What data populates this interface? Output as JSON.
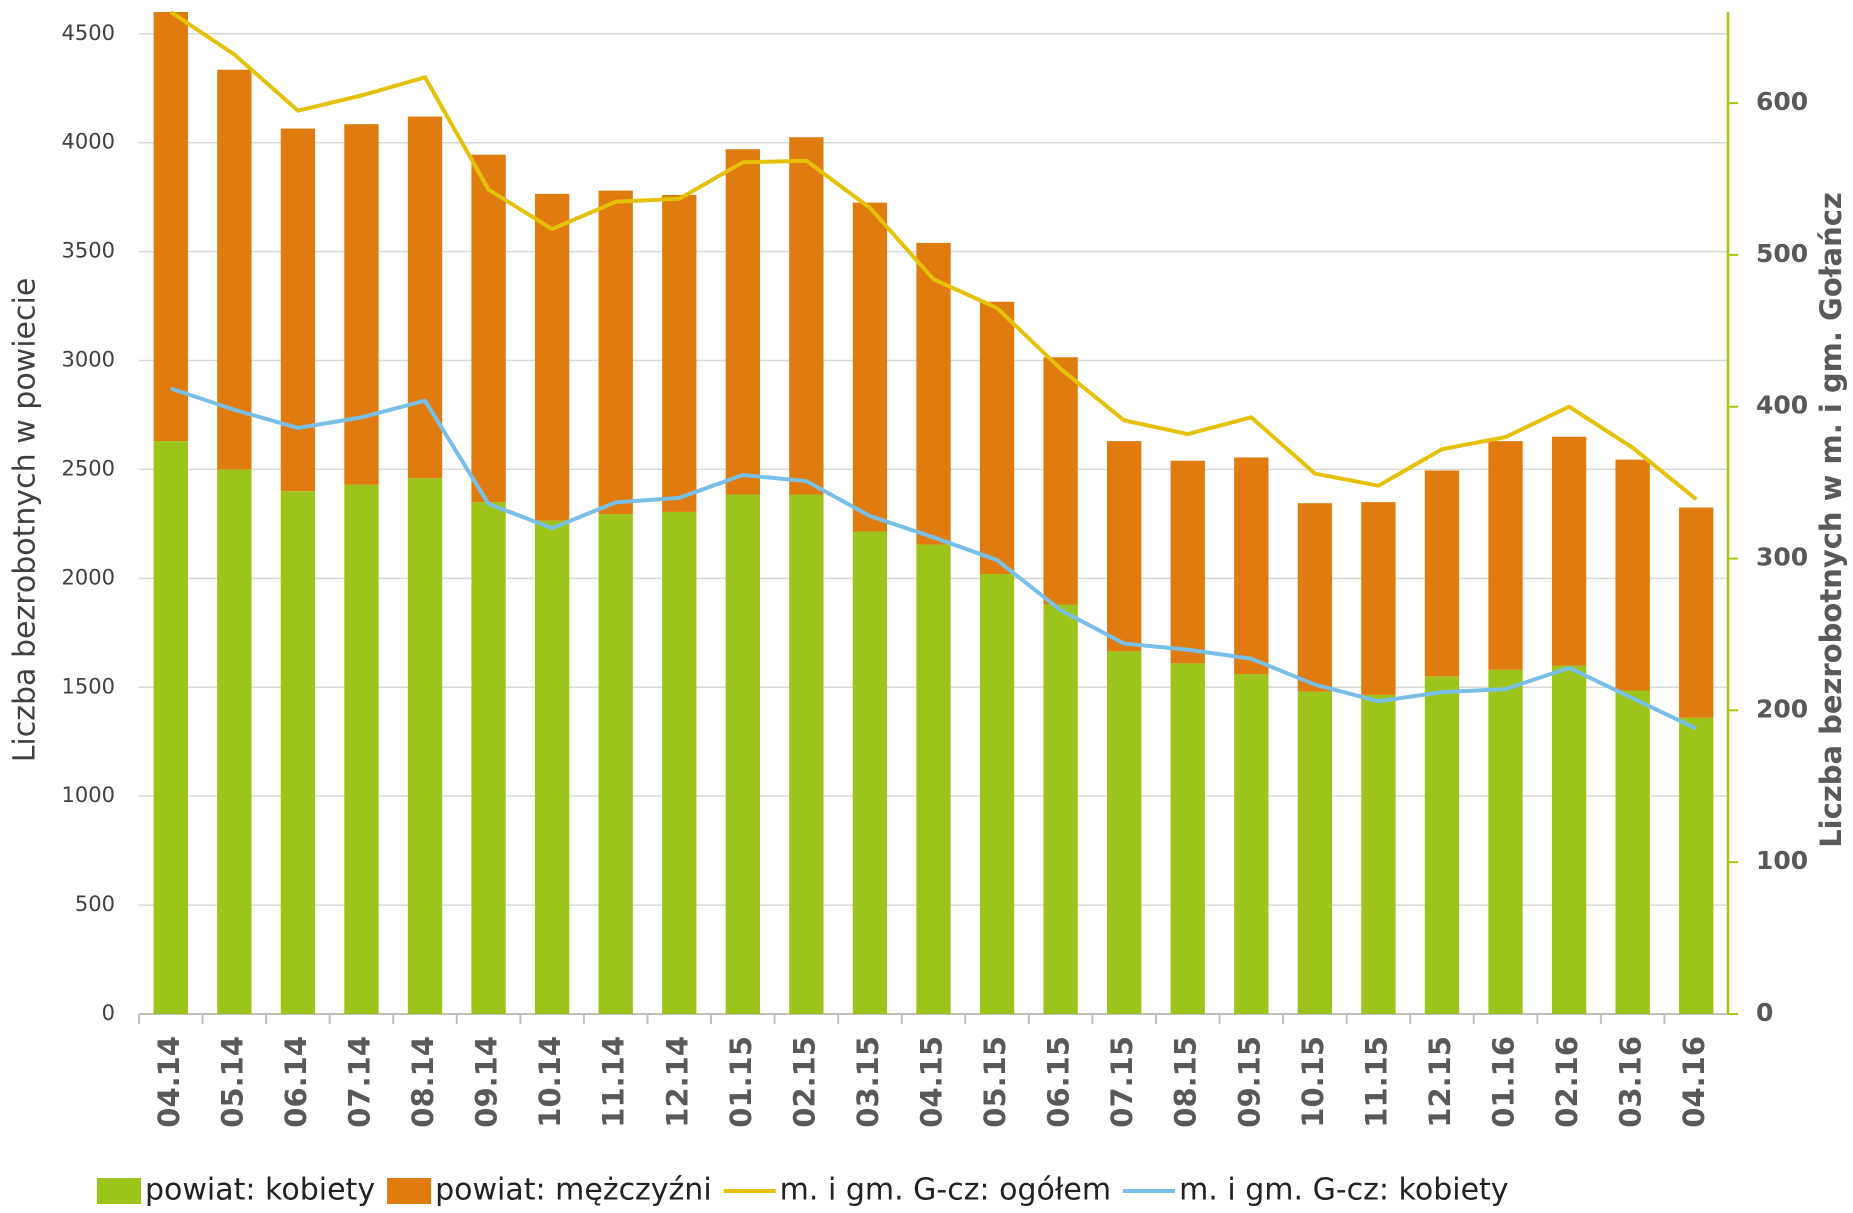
{
  "chart_data": {
    "type": "bar",
    "y_title": "Liczba bezrobotnych w powiecie",
    "y2_title": "Liczba bezrobotnych w m. i gm. Gołańcz",
    "categories": [
      "04.14",
      "05.14",
      "06.14",
      "07.14",
      "08.14",
      "09.14",
      "10.14",
      "11.14",
      "12.14",
      "01.15",
      "02.15",
      "03.15",
      "04.15",
      "05.15",
      "06.15",
      "07.15",
      "08.15",
      "09.15",
      "10.15",
      "11.15",
      "12.15",
      "01.16",
      "02.16",
      "03.16",
      "04.16"
    ],
    "series": [
      {
        "name": "powiat: kobiety",
        "type": "bar",
        "color": "#9dc41a",
        "values": [
          2630,
          2500,
          2400,
          2430,
          2460,
          2350,
          2265,
          2295,
          2305,
          2385,
          2385,
          2215,
          2155,
          2020,
          1880,
          1665,
          1610,
          1560,
          1480,
          1465,
          1550,
          1580,
          1600,
          1485,
          1360
        ]
      },
      {
        "name": "powiat: mężczyźni",
        "type": "bar",
        "color": "#e07b0f",
        "values": [
          1970,
          1835,
          1665,
          1655,
          1660,
          1595,
          1500,
          1485,
          1455,
          1585,
          1640,
          1510,
          1385,
          1250,
          1135,
          965,
          930,
          995,
          865,
          885,
          945,
          1050,
          1050,
          1060,
          965
        ]
      },
      {
        "name": "m. i gm. G-cz: ogółem",
        "type": "line",
        "axis": "y2",
        "color": "#e6c10a",
        "values": [
          660,
          632,
          595,
          605,
          617,
          543,
          517,
          535,
          537,
          561,
          562,
          531,
          484,
          465,
          425,
          391,
          382,
          393,
          356,
          348,
          372,
          380,
          400,
          373,
          339
        ]
      },
      {
        "name": "m. i gm. G-cz: kobiety",
        "type": "line",
        "axis": "y2",
        "color": "#79bfe8",
        "values": [
          412,
          398,
          386,
          393,
          404,
          336,
          320,
          337,
          340,
          355,
          351,
          328,
          314,
          299,
          266,
          244,
          240,
          234,
          217,
          206,
          212,
          214,
          228,
          208,
          188
        ]
      }
    ],
    "ylim": [
      0,
      4600
    ],
    "yticks": [
      0,
      500,
      1000,
      1500,
      2000,
      2500,
      3000,
      3500,
      4000,
      4500
    ],
    "y2lim": [
      0,
      660
    ],
    "y2ticks": [
      0,
      100,
      200,
      300,
      400,
      500,
      600
    ],
    "y2_axis_color": "#a5c714",
    "grid": true,
    "legend": "bottom"
  }
}
